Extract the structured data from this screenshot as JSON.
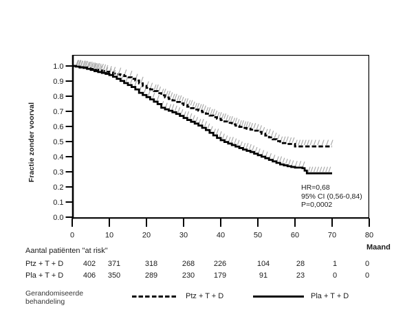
{
  "figure": {
    "background": "#ffffff",
    "axis_color": "#000000",
    "text_color": "#1a1a1a",
    "censor_color": "#aaaaaa"
  },
  "chart_data": {
    "type": "line",
    "subtype": "kaplan_meier_step",
    "title": "",
    "xlabel": "Maand",
    "ylabel": "Fractie zonder voorval",
    "xlim": [
      0,
      80
    ],
    "ylim": [
      0.0,
      1.07
    ],
    "x_ticks": [
      0,
      10,
      20,
      30,
      40,
      50,
      60,
      70,
      80
    ],
    "y_ticks": [
      0.0,
      0.1,
      0.2,
      0.3,
      0.4,
      0.5,
      0.6,
      0.7,
      0.8,
      0.9,
      1.0
    ],
    "grid": false,
    "legend_position": "bottom",
    "annotation_lines": [
      "HR=0,68",
      "95% CI (0,56-0,84)",
      "P=0,0002"
    ],
    "series": [
      {
        "name": "Ptz + T + D",
        "line_style": "dashed",
        "color": "#000000",
        "points": [
          [
            0,
            1.0
          ],
          [
            1,
            0.995
          ],
          [
            2,
            0.99
          ],
          [
            4,
            0.985
          ],
          [
            5,
            0.98
          ],
          [
            6,
            0.975
          ],
          [
            7,
            0.971
          ],
          [
            8,
            0.967
          ],
          [
            9,
            0.962
          ],
          [
            10,
            0.956
          ],
          [
            11,
            0.95
          ],
          [
            12,
            0.945
          ],
          [
            13,
            0.939
          ],
          [
            14,
            0.933
          ],
          [
            15,
            0.925
          ],
          [
            16,
            0.915
          ],
          [
            17,
            0.904
          ],
          [
            18,
            0.885
          ],
          [
            19,
            0.868
          ],
          [
            20,
            0.855
          ],
          [
            21,
            0.845
          ],
          [
            22,
            0.834
          ],
          [
            23,
            0.82
          ],
          [
            24,
            0.806
          ],
          [
            25,
            0.792
          ],
          [
            26,
            0.782
          ],
          [
            27,
            0.772
          ],
          [
            28,
            0.762
          ],
          [
            29,
            0.752
          ],
          [
            30,
            0.742
          ],
          [
            31,
            0.731
          ],
          [
            32,
            0.721
          ],
          [
            33,
            0.712
          ],
          [
            34,
            0.704
          ],
          [
            35,
            0.695
          ],
          [
            36,
            0.684
          ],
          [
            37,
            0.672
          ],
          [
            38,
            0.661
          ],
          [
            39,
            0.651
          ],
          [
            40,
            0.642
          ],
          [
            41,
            0.633
          ],
          [
            42,
            0.624
          ],
          [
            43,
            0.614
          ],
          [
            44,
            0.605
          ],
          [
            45,
            0.597
          ],
          [
            46,
            0.59
          ],
          [
            47,
            0.585
          ],
          [
            48,
            0.579
          ],
          [
            49,
            0.572
          ],
          [
            50,
            0.564
          ],
          [
            51,
            0.552
          ],
          [
            52,
            0.54
          ],
          [
            53,
            0.528
          ],
          [
            54,
            0.515
          ],
          [
            55,
            0.503
          ],
          [
            56,
            0.49
          ],
          [
            58,
            0.484
          ],
          [
            60,
            0.468
          ],
          [
            70,
            0.468
          ]
        ],
        "censor_months": [
          1.2,
          1.8,
          2.3,
          2.8,
          3.2,
          3.6,
          4,
          4.4,
          4.8,
          5.2,
          5.6,
          6,
          6.4,
          6.8,
          7.2,
          7.8,
          8.4,
          9,
          10,
          11,
          12.5,
          14,
          15.5,
          17,
          18.5,
          20,
          21,
          22,
          22.6,
          23.2,
          24,
          24.6,
          25.2,
          25.8,
          26.4,
          27,
          27.6,
          28.2,
          28.8,
          29.4,
          30,
          30.6,
          31.2,
          31.8,
          32.4,
          33,
          33.6,
          34.2,
          34.8,
          35.4,
          36,
          36.6,
          37.2,
          37.8,
          38.4,
          39,
          39.6,
          40.2,
          40.8,
          41.4,
          42,
          42.6,
          43.2,
          43.8,
          44.4,
          45,
          45.6,
          46.2,
          46.8,
          47.4,
          48,
          48.8,
          49.6,
          50.4,
          51.2,
          52,
          52.8,
          53.6,
          54.4,
          55.2,
          56,
          56.8,
          57.6,
          58.4,
          59.2,
          60,
          60.8,
          61.6,
          62.4,
          63.2,
          64,
          65,
          66,
          67.2,
          68.4,
          69.6
        ]
      },
      {
        "name": "Pla + T + D",
        "line_style": "solid",
        "color": "#000000",
        "points": [
          [
            0,
            1.0
          ],
          [
            1,
            0.996
          ],
          [
            2,
            0.992
          ],
          [
            3,
            0.987
          ],
          [
            4,
            0.981
          ],
          [
            5,
            0.974
          ],
          [
            6,
            0.966
          ],
          [
            7,
            0.96
          ],
          [
            8,
            0.954
          ],
          [
            9,
            0.948
          ],
          [
            10,
            0.94
          ],
          [
            11,
            0.929
          ],
          [
            12,
            0.915
          ],
          [
            13,
            0.901
          ],
          [
            14,
            0.887
          ],
          [
            15,
            0.874
          ],
          [
            16,
            0.861
          ],
          [
            17,
            0.845
          ],
          [
            18,
            0.822
          ],
          [
            19,
            0.808
          ],
          [
            20,
            0.794
          ],
          [
            21,
            0.779
          ],
          [
            22,
            0.764
          ],
          [
            23,
            0.748
          ],
          [
            24,
            0.724
          ],
          [
            25,
            0.713
          ],
          [
            26,
            0.704
          ],
          [
            27,
            0.694
          ],
          [
            28,
            0.683
          ],
          [
            29,
            0.67
          ],
          [
            30,
            0.656
          ],
          [
            31,
            0.643
          ],
          [
            32,
            0.631
          ],
          [
            33,
            0.619
          ],
          [
            34,
            0.606
          ],
          [
            35,
            0.591
          ],
          [
            36,
            0.576
          ],
          [
            37,
            0.558
          ],
          [
            38,
            0.541
          ],
          [
            39,
            0.524
          ],
          [
            40,
            0.509
          ],
          [
            41,
            0.497
          ],
          [
            42,
            0.487
          ],
          [
            43,
            0.477
          ],
          [
            44,
            0.467
          ],
          [
            45,
            0.457
          ],
          [
            46,
            0.447
          ],
          [
            47,
            0.439
          ],
          [
            48,
            0.431
          ],
          [
            49,
            0.42
          ],
          [
            50,
            0.41
          ],
          [
            51,
            0.4
          ],
          [
            52,
            0.39
          ],
          [
            53,
            0.379
          ],
          [
            54,
            0.369
          ],
          [
            55,
            0.359
          ],
          [
            56,
            0.349
          ],
          [
            57,
            0.343
          ],
          [
            58,
            0.337
          ],
          [
            59,
            0.332
          ],
          [
            60,
            0.328
          ],
          [
            62,
            0.324
          ],
          [
            62.6,
            0.308
          ],
          [
            63.2,
            0.29
          ],
          [
            70,
            0.29
          ]
        ],
        "censor_months": [
          1,
          1.6,
          2.2,
          2.9,
          3.5,
          4.2,
          5,
          5.8,
          6.6,
          7.4,
          8.2,
          9,
          10,
          11,
          12,
          13.2,
          14.4,
          15.6,
          16.8,
          18,
          19.2,
          20.4,
          21.6,
          22.8,
          24,
          25,
          26,
          26.8,
          27.6,
          28.4,
          29.2,
          30,
          30.8,
          31.6,
          32.4,
          33.2,
          34,
          34.8,
          35.6,
          36.4,
          37.2,
          38,
          38.8,
          39.6,
          40.4,
          41.2,
          42,
          42.8,
          43.6,
          44.4,
          45.2,
          46,
          46.8,
          47.6,
          48.4,
          49.2,
          50,
          51,
          52,
          53,
          54,
          55,
          55.8,
          56.6,
          57.4,
          58.2,
          59,
          60,
          61,
          62,
          63.5,
          64.2,
          65,
          65.8,
          66.6,
          67.4,
          68.2,
          69
        ]
      }
    ]
  },
  "at_risk": {
    "header": "Aantal patiënten \"at risk\"",
    "rows": [
      {
        "label": "Ptz + T + D",
        "counts": [
          "402",
          "371",
          "318",
          "268",
          "226",
          "104",
          "28",
          "1",
          "0"
        ]
      },
      {
        "label": "Pla + T + D",
        "counts": [
          "406",
          "350",
          "289",
          "230",
          "179",
          "91",
          "23",
          "0",
          "0"
        ]
      }
    ]
  },
  "legend": {
    "title_line1": "Gerandomiseerde",
    "title_line2": "behandeling",
    "items": [
      {
        "style": "dashed",
        "label": "Ptz + T + D"
      },
      {
        "style": "solid",
        "label": "Pla + T + D"
      }
    ]
  }
}
